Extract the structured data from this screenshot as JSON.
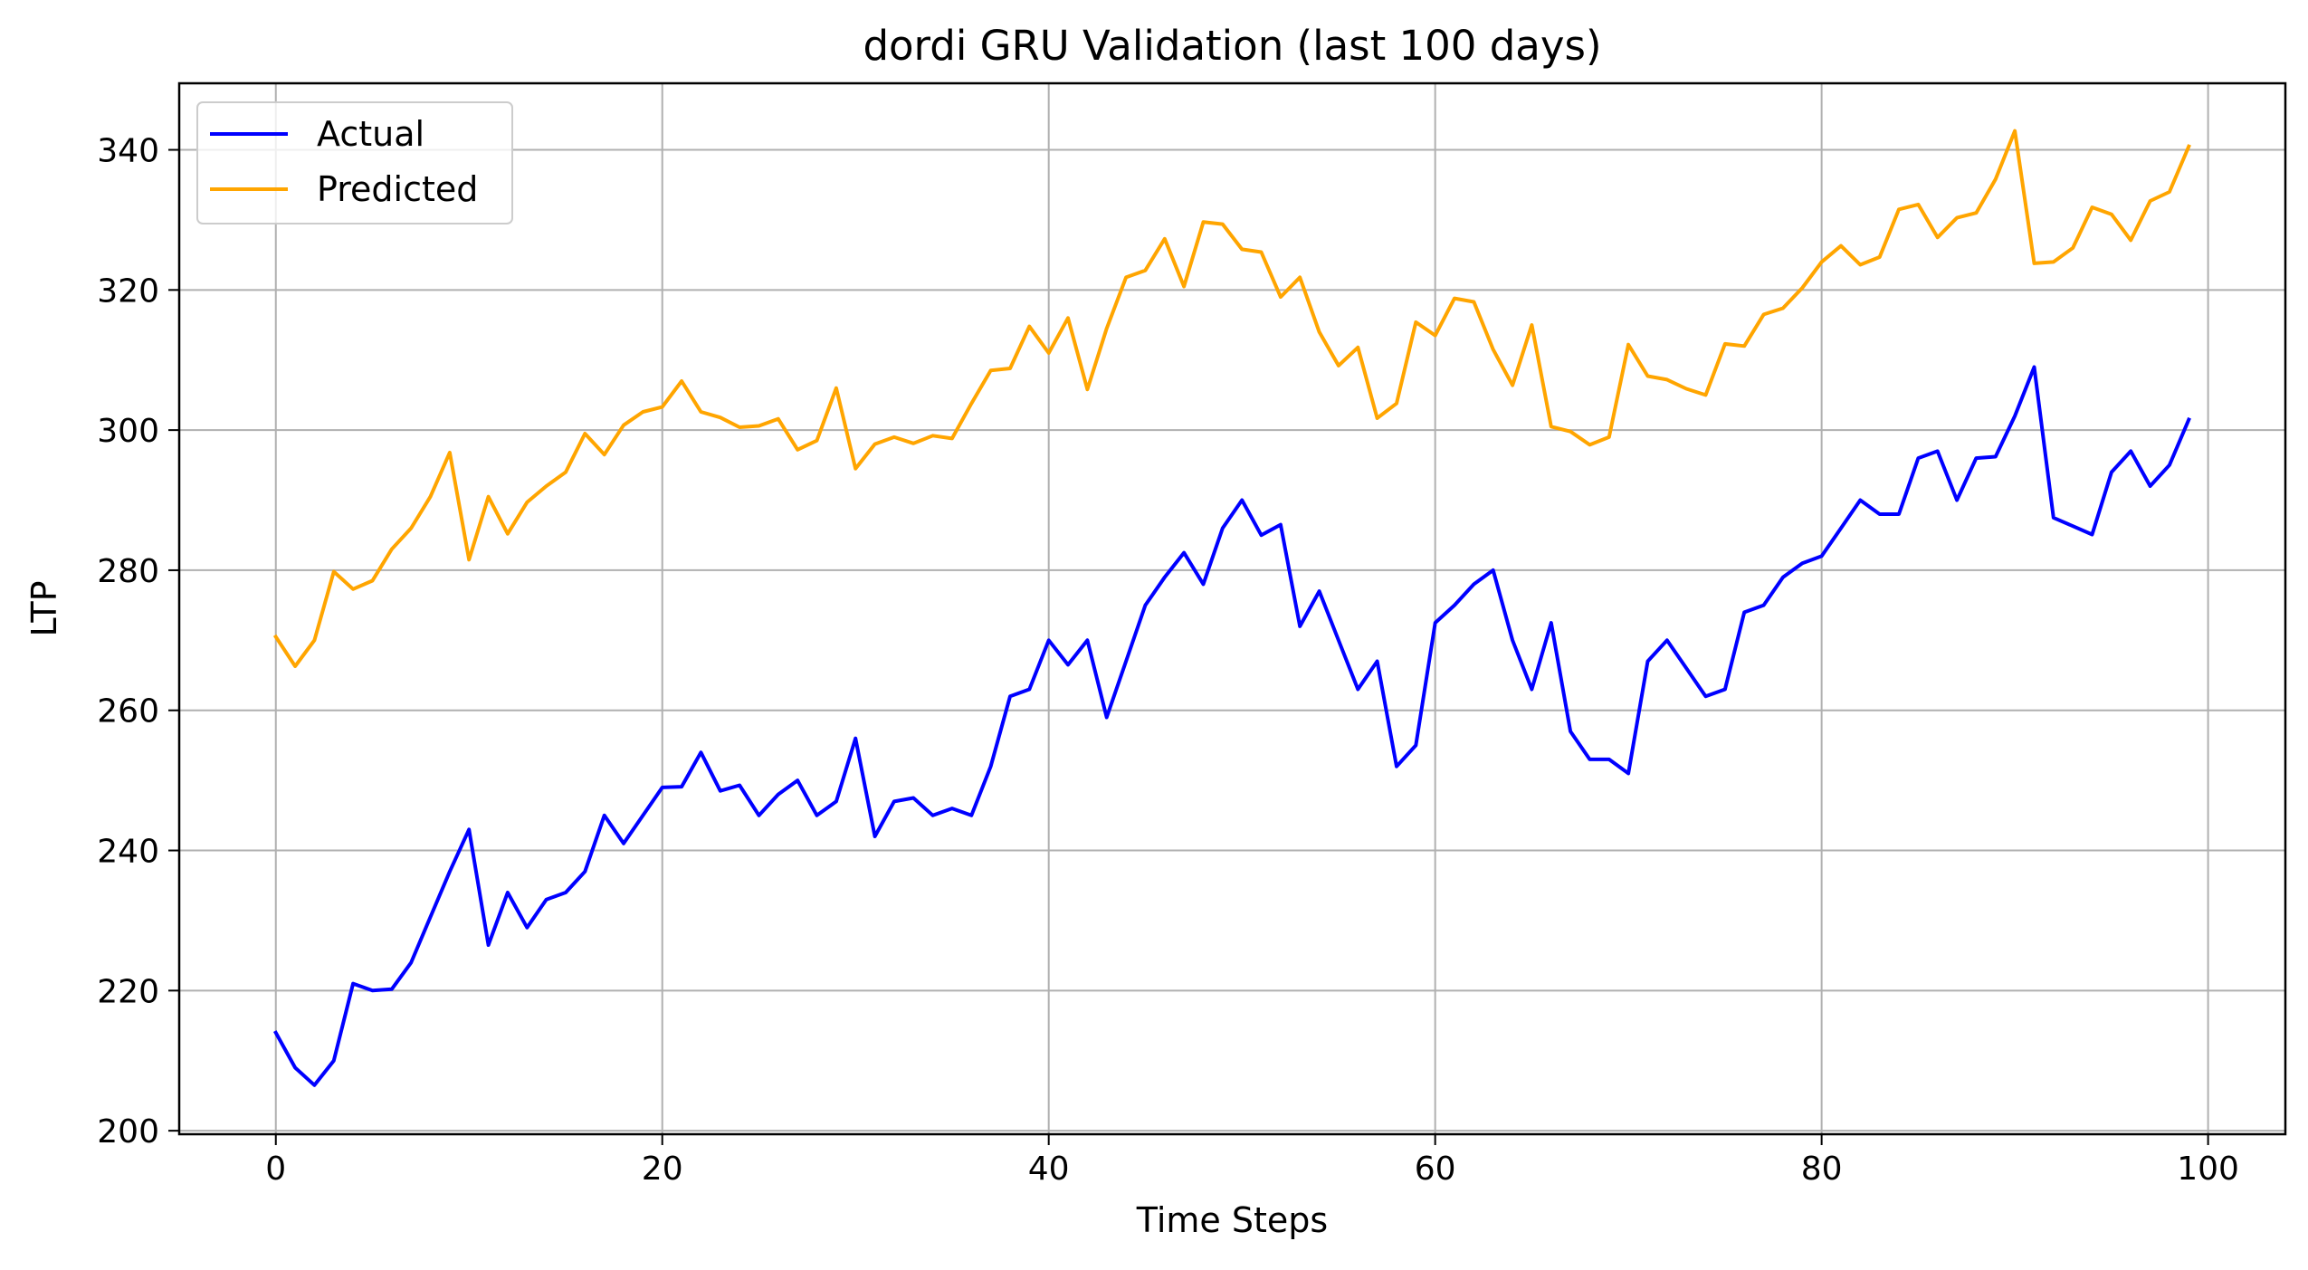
{
  "chart_data": {
    "type": "line",
    "title": "dordi GRU Validation (last 100 days)",
    "xlabel": "Time Steps",
    "ylabel": "LTP",
    "xlim": [
      -5,
      104
    ],
    "ylim": [
      199.5,
      349.5
    ],
    "xticks": [
      0,
      20,
      40,
      60,
      80,
      100
    ],
    "yticks": [
      200,
      220,
      240,
      260,
      280,
      300,
      320,
      340
    ],
    "grid": true,
    "legend_position": "upper left",
    "x": [
      0,
      1,
      2,
      3,
      4,
      5,
      6,
      7,
      8,
      9,
      10,
      11,
      12,
      13,
      14,
      15,
      16,
      17,
      18,
      19,
      20,
      21,
      22,
      23,
      24,
      25,
      26,
      27,
      28,
      29,
      30,
      31,
      32,
      33,
      34,
      35,
      36,
      37,
      38,
      39,
      40,
      41,
      42,
      43,
      44,
      45,
      46,
      47,
      48,
      49,
      50,
      51,
      52,
      53,
      54,
      55,
      56,
      57,
      58,
      59,
      60,
      61,
      62,
      63,
      64,
      65,
      66,
      67,
      68,
      69,
      70,
      71,
      72,
      73,
      74,
      75,
      76,
      77,
      78,
      79,
      80,
      81,
      82,
      83,
      84,
      85,
      86,
      87,
      88,
      89,
      90,
      91,
      92,
      93,
      94,
      95,
      96,
      97,
      98,
      99
    ],
    "series": [
      {
        "name": "Actual",
        "color": "#0000ff",
        "values": [
          214,
          209,
          206.5,
          210,
          221,
          220,
          220.2,
          224,
          230.5,
          237,
          243,
          226.5,
          234,
          229,
          233,
          234,
          237,
          245,
          241,
          245,
          249,
          249.1,
          254,
          248.5,
          249.3,
          245,
          248,
          250,
          245,
          247,
          256,
          242,
          247,
          247.5,
          245,
          246,
          245,
          252,
          262,
          263,
          270,
          266.5,
          270,
          259,
          267,
          275,
          279,
          282.5,
          278,
          286,
          290,
          285,
          286.5,
          272,
          277,
          270,
          263,
          267,
          252,
          255,
          272.5,
          275,
          278,
          280,
          270,
          263,
          272.5,
          257,
          253,
          253,
          251,
          267,
          270,
          266,
          262,
          263,
          274,
          275,
          279,
          281,
          282,
          286,
          290,
          288,
          288,
          296,
          297,
          290,
          296,
          296.2,
          302,
          309,
          287.5,
          286.3,
          285.1,
          294,
          297,
          292,
          295,
          301.5
        ]
      },
      {
        "name": "Predicted",
        "color": "#ffa500",
        "values": [
          270.5,
          266.3,
          270,
          279.8,
          277.3,
          278.5,
          283,
          286,
          290.5,
          296.8,
          281.5,
          290.5,
          285.2,
          289.7,
          292,
          294,
          299.5,
          296.5,
          300.7,
          302.6,
          303.3,
          307,
          302.6,
          301.8,
          300.4,
          300.6,
          301.6,
          297.2,
          298.5,
          306,
          294.5,
          298,
          299,
          298.1,
          299.2,
          298.8,
          303.8,
          308.5,
          308.8,
          314.8,
          311,
          316,
          305.8,
          314.5,
          321.8,
          322.8,
          327.3,
          320.5,
          329.7,
          329.4,
          325.8,
          325.4,
          319,
          321.8,
          314,
          309.2,
          311.8,
          301.7,
          303.8,
          315.4,
          313.5,
          318.8,
          318.3,
          311.5,
          306.4,
          315,
          300.5,
          299.8,
          297.9,
          299,
          312.2,
          307.7,
          307.2,
          305.9,
          305,
          312.3,
          312,
          316.5,
          317.4,
          320.3,
          324,
          326.3,
          323.6,
          324.7,
          331.5,
          332.2,
          327.5,
          330.3,
          331,
          335.8,
          342.7,
          323.8,
          324,
          326,
          331.8,
          330.8,
          327.1,
          332.7,
          334,
          340.5
        ]
      }
    ]
  }
}
